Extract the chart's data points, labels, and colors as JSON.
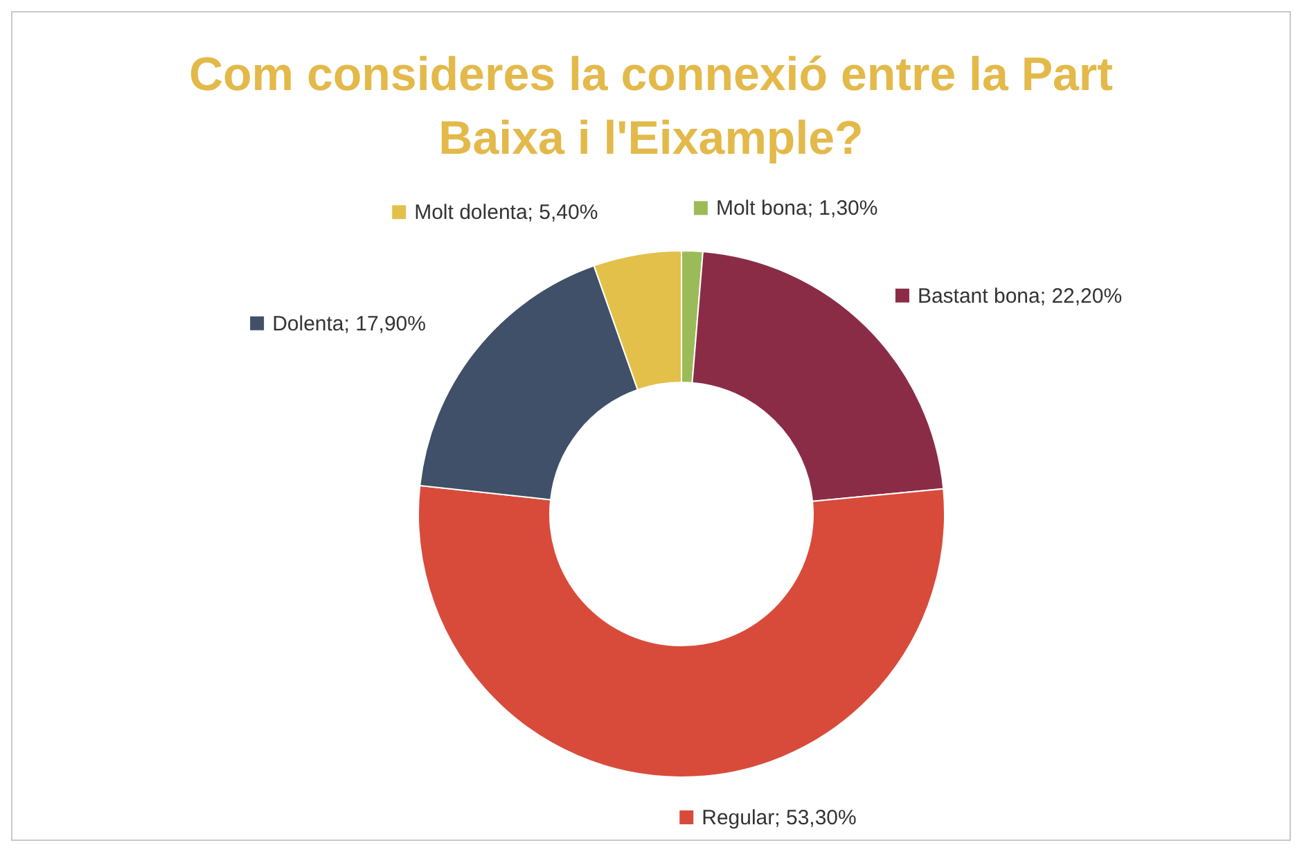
{
  "chart_data": {
    "type": "donut",
    "title": "Com consideres la connexió entre la Part Baixa i l'Eixample?",
    "categories": [
      "Molt bona",
      "Bastant bona",
      "Regular",
      "Dolenta",
      "Molt dolenta"
    ],
    "values": [
      1.3,
      22.2,
      53.3,
      17.9,
      5.4
    ],
    "colors": [
      "#9bbb59",
      "#8b2c47",
      "#d84b3a",
      "#3f5068",
      "#e3c04a"
    ],
    "value_labels": [
      "1,30%",
      "22,20%",
      "53,30%",
      "17,90%",
      "5,40%"
    ],
    "legend": "right"
  }
}
